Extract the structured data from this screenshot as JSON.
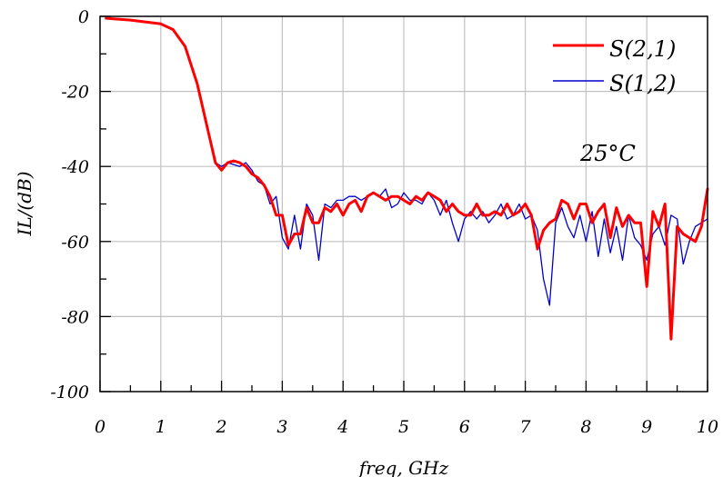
{
  "chart_data": {
    "type": "line",
    "title": "",
    "xlabel": "freq, GHz",
    "ylabel": "IL/(dB)",
    "xlim": [
      0,
      10
    ],
    "ylim": [
      -100,
      0
    ],
    "xticks": [
      0,
      1,
      2,
      3,
      4,
      5,
      6,
      7,
      8,
      9,
      10
    ],
    "yticks": [
      0,
      -20,
      -40,
      -60,
      -80,
      -100
    ],
    "x_tick_labels": [
      "0",
      "1",
      "2",
      "3",
      "4",
      "5",
      "6",
      "7",
      "8",
      "9",
      "10"
    ],
    "y_tick_labels": [
      "0",
      "-20",
      "-40",
      "-60",
      "-80",
      "-100"
    ],
    "grid": true,
    "legend_position": "top-right",
    "annotation": "25°C",
    "series": [
      {
        "name": "S(2,1)",
        "color": "#ff0000",
        "x": [
          0.1,
          0.5,
          1.0,
          1.2,
          1.4,
          1.6,
          1.8,
          1.9,
          2.0,
          2.1,
          2.2,
          2.3,
          2.4,
          2.5,
          2.6,
          2.7,
          2.8,
          2.9,
          3.0,
          3.1,
          3.2,
          3.3,
          3.4,
          3.5,
          3.6,
          3.7,
          3.8,
          3.9,
          4.0,
          4.1,
          4.2,
          4.3,
          4.4,
          4.5,
          4.6,
          4.7,
          4.8,
          4.9,
          5.0,
          5.1,
          5.2,
          5.3,
          5.4,
          5.5,
          5.6,
          5.7,
          5.8,
          5.9,
          6.0,
          6.1,
          6.2,
          6.3,
          6.4,
          6.5,
          6.6,
          6.7,
          6.8,
          6.9,
          7.0,
          7.1,
          7.2,
          7.3,
          7.4,
          7.5,
          7.6,
          7.7,
          7.8,
          7.9,
          8.0,
          8.1,
          8.2,
          8.3,
          8.4,
          8.5,
          8.6,
          8.7,
          8.8,
          8.9,
          9.0,
          9.1,
          9.2,
          9.3,
          9.4,
          9.5,
          9.6,
          9.7,
          9.8,
          9.9,
          10.0
        ],
        "values": [
          -0.5,
          -1.0,
          -2.0,
          -3.5,
          -8,
          -18,
          -32,
          -39,
          -41,
          -39,
          -38.5,
          -39,
          -40,
          -42,
          -43,
          -45,
          -48,
          -53,
          -53,
          -61,
          -58,
          -58,
          -51,
          -55,
          -55,
          -51,
          -52,
          -50,
          -53,
          -50,
          -49,
          -52,
          -48,
          -47,
          -48,
          -49,
          -48,
          -48,
          -49,
          -50,
          -48,
          -49,
          -47,
          -48,
          -49,
          -52,
          -50,
          -52,
          -53,
          -53,
          -50,
          -53,
          -53,
          -52,
          -53,
          -50,
          -53,
          -52,
          -50,
          -53,
          -62,
          -57,
          -55,
          -54,
          -49,
          -50,
          -54,
          -50,
          -50,
          -55,
          -52,
          -50,
          -59,
          -51,
          -56,
          -53,
          -55,
          -55,
          -72,
          -52,
          -56,
          -50,
          -86,
          -56,
          -58,
          -59,
          -60,
          -56,
          -46
        ]
      },
      {
        "name": "S(1,2)",
        "color": "#0000cc",
        "x": [
          0.1,
          0.5,
          1.0,
          1.2,
          1.4,
          1.6,
          1.8,
          1.9,
          2.0,
          2.1,
          2.2,
          2.3,
          2.4,
          2.5,
          2.6,
          2.7,
          2.8,
          2.9,
          3.0,
          3.1,
          3.2,
          3.3,
          3.4,
          3.5,
          3.6,
          3.7,
          3.8,
          3.9,
          4.0,
          4.1,
          4.2,
          4.3,
          4.4,
          4.5,
          4.6,
          4.7,
          4.8,
          4.9,
          5.0,
          5.1,
          5.2,
          5.3,
          5.4,
          5.5,
          5.6,
          5.7,
          5.8,
          5.9,
          6.0,
          6.1,
          6.2,
          6.3,
          6.4,
          6.5,
          6.6,
          6.7,
          6.8,
          6.9,
          7.0,
          7.1,
          7.2,
          7.3,
          7.4,
          7.5,
          7.6,
          7.7,
          7.8,
          7.9,
          8.0,
          8.1,
          8.2,
          8.3,
          8.4,
          8.5,
          8.6,
          8.7,
          8.8,
          8.9,
          9.0,
          9.1,
          9.2,
          9.3,
          9.4,
          9.5,
          9.6,
          9.7,
          9.8,
          9.9,
          10.0
        ],
        "values": [
          -0.5,
          -1.0,
          -2.0,
          -3.5,
          -8,
          -18,
          -32,
          -39,
          -40,
          -39,
          -39.5,
          -40,
          -39,
          -41,
          -44,
          -45,
          -50,
          -48,
          -59,
          -62,
          -53,
          -62,
          -50,
          -53,
          -65,
          -50,
          -51,
          -49,
          -49,
          -48,
          -48,
          -49,
          -48,
          -47,
          -48,
          -46,
          -51,
          -50,
          -47,
          -49,
          -49,
          -50,
          -47,
          -49,
          -53,
          -49,
          -55,
          -60,
          -54,
          -52,
          -54,
          -52,
          -55,
          -53,
          -50,
          -54,
          -53,
          -50,
          -54,
          -53,
          -57,
          -70,
          -77,
          -55,
          -51,
          -56,
          -59,
          -53,
          -60,
          -52,
          -64,
          -54,
          -63,
          -56,
          -65,
          -53,
          -59,
          -61,
          -65,
          -58,
          -56,
          -61,
          -53,
          -54,
          -66,
          -60,
          -56,
          -55,
          -54
        ]
      }
    ]
  }
}
